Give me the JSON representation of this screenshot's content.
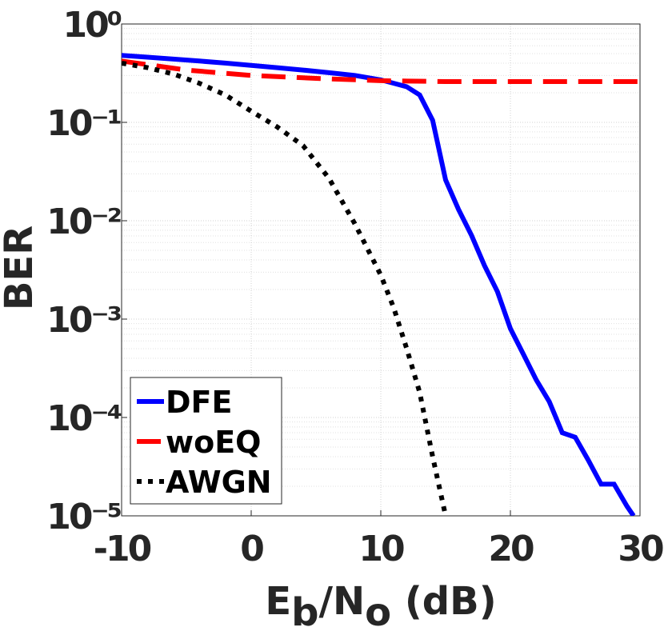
{
  "chart_data": {
    "type": "line",
    "xlabel": "Eb/No (dB)",
    "ylabel": "BER",
    "xlim": [
      -10,
      30
    ],
    "xticks": [
      -10,
      0,
      10,
      20,
      30
    ],
    "ylim": [
      1e-05,
      1
    ],
    "log_y": true,
    "grid": true,
    "minor_grid": true,
    "legend": "southwest",
    "yticks": [
      {
        "value": 1,
        "label": "10⁰"
      },
      {
        "value": 0.1,
        "label": "10⁻¹"
      },
      {
        "value": 0.01,
        "label": "10⁻²"
      },
      {
        "value": 0.001,
        "label": "10⁻³"
      },
      {
        "value": 0.0001,
        "label": "10⁻⁴"
      },
      {
        "value": 1e-05,
        "label": "10⁻⁵"
      }
    ],
    "series": [
      {
        "name": "DFE",
        "color": "#0000ff",
        "style": "solid",
        "x": [
          -10,
          -8,
          -6,
          -4,
          -2,
          0,
          2,
          4,
          6,
          8,
          10,
          11,
          12,
          13,
          14,
          15,
          16,
          17,
          18,
          19,
          20,
          21,
          22,
          23,
          24,
          25,
          26,
          27,
          28,
          29,
          29.5
        ],
        "values": [
          0.48,
          0.46,
          0.44,
          0.42,
          0.4,
          0.38,
          0.36,
          0.34,
          0.32,
          0.3,
          0.27,
          0.25,
          0.23,
          0.19,
          0.105,
          0.026,
          0.013,
          0.0071,
          0.0035,
          0.0019,
          0.0008,
          0.00044,
          0.00024,
          0.000145,
          7e-05,
          6.3e-05,
          3.7e-05,
          2.1e-05,
          2.1e-05,
          1.25e-05,
          1e-05
        ]
      },
      {
        "name": "woEQ",
        "color": "#ff0000",
        "style": "dashed",
        "x": [
          -10,
          -5,
          0,
          5,
          10,
          15,
          20,
          25,
          30
        ],
        "values": [
          0.42,
          0.34,
          0.3,
          0.28,
          0.265,
          0.26,
          0.26,
          0.26,
          0.26
        ]
      },
      {
        "name": "AWGN",
        "color": "#000000",
        "style": "dotted",
        "x": [
          -10,
          -8,
          -6,
          -4,
          -2,
          0,
          2,
          4,
          6,
          8,
          10,
          11,
          12,
          13,
          14,
          15
        ],
        "values": [
          0.4,
          0.36,
          0.31,
          0.25,
          0.19,
          0.13,
          0.09,
          0.058,
          0.027,
          0.0093,
          0.0028,
          0.0013,
          0.0005,
          0.00018,
          4e-05,
          1e-05
        ]
      }
    ]
  }
}
